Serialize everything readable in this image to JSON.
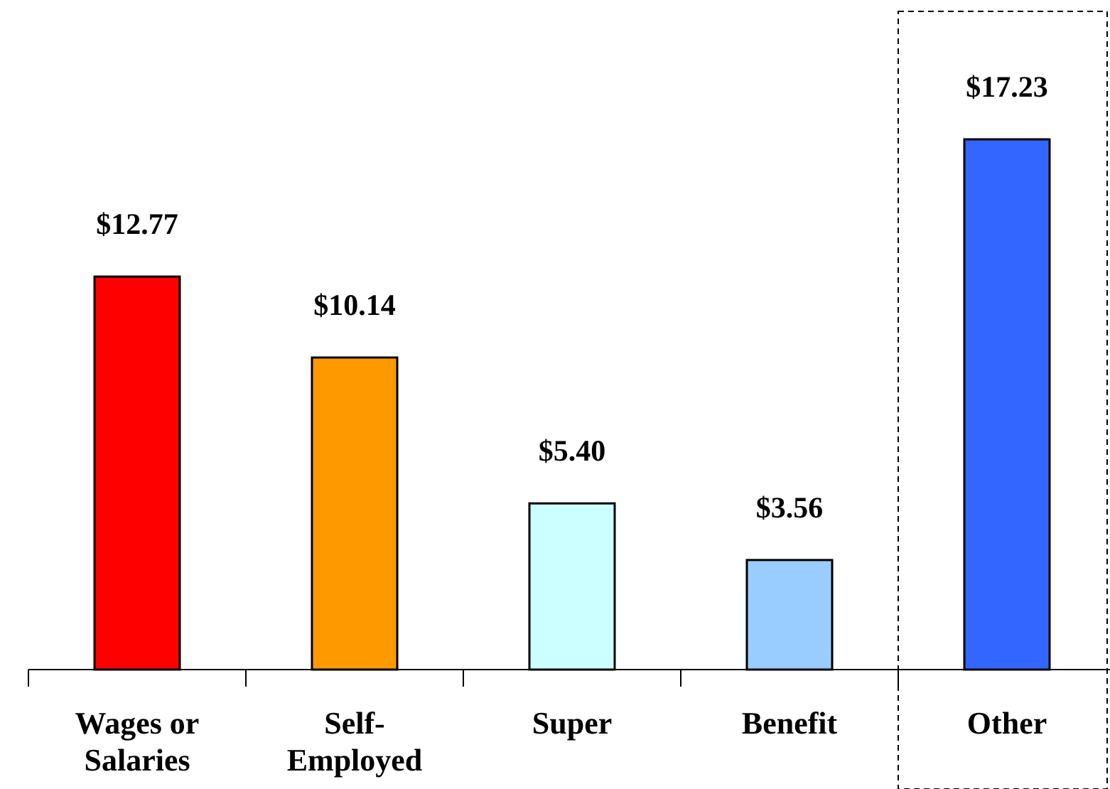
{
  "chart_data": {
    "type": "bar",
    "categories": [
      "Wages or Salaries",
      "Self-Employed",
      "Super",
      "Benefit",
      "Other"
    ],
    "values": [
      12.77,
      10.14,
      5.4,
      3.56,
      17.23
    ],
    "colors": [
      "#ff0000",
      "#ff9900",
      "#ccffff",
      "#99ccff",
      "#3366ff"
    ],
    "value_labels": [
      "$12.77",
      "$10.14",
      "$5.40",
      "$3.56",
      "$17.23"
    ],
    "relative": false
  }
}
